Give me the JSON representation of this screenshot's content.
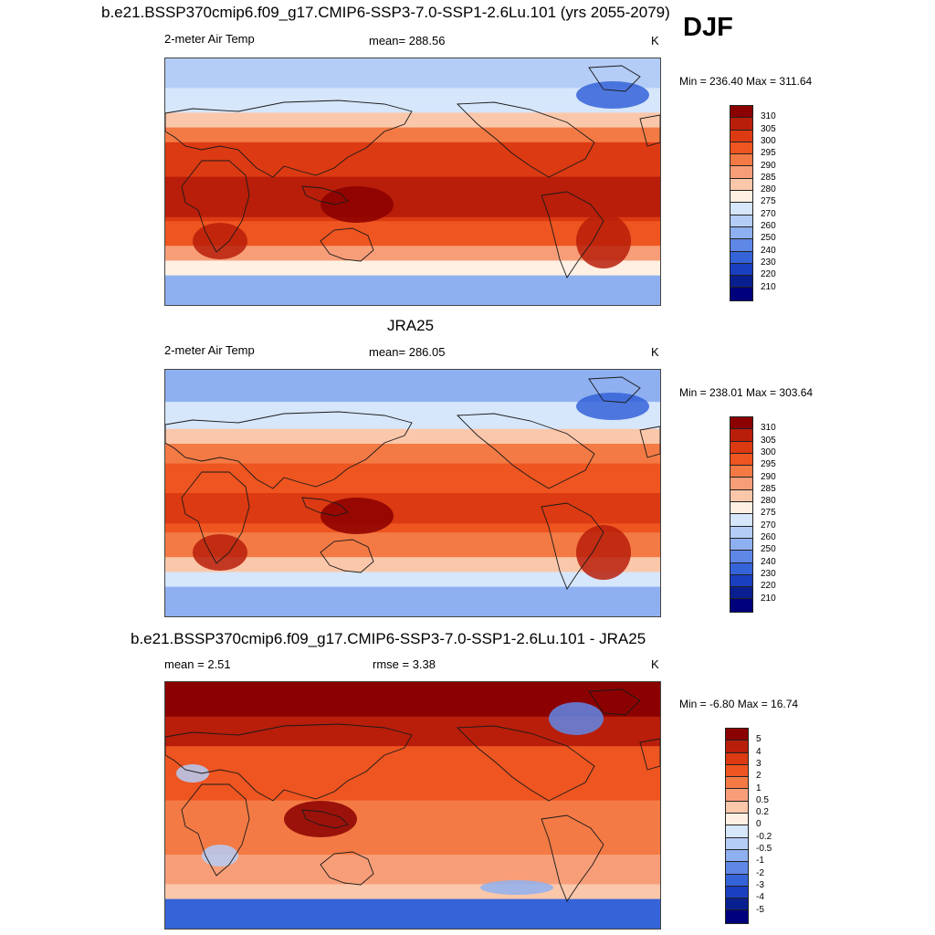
{
  "figure": {
    "title": "b.e21.BSSP370cmip6.f09_g17.CMIP6-SSP3-7.0-SSP1-2.6Lu.101 (yrs 2055-2079)",
    "season": "DJF"
  },
  "chart_data": [
    {
      "type": "heatmap",
      "title": "",
      "left_label": "2-meter Air Temp",
      "center_label": "mean= 288.56",
      "right_label": "K",
      "minmax": "Min = 236.40 Max = 311.64",
      "mean": 288.56,
      "min": 236.4,
      "max": 311.64,
      "units": "K",
      "colorbar_levels": [
        "310",
        "305",
        "300",
        "295",
        "290",
        "285",
        "280",
        "275",
        "270",
        "260",
        "250",
        "240",
        "230",
        "220",
        "210"
      ],
      "colors": [
        "#8b0000",
        "#b81e0a",
        "#dc3a12",
        "#ee5520",
        "#f37a45",
        "#f79e78",
        "#fbc7aa",
        "#fff0e3",
        "#d6e6fb",
        "#b4cdf7",
        "#8fb0f0",
        "#5f87e6",
        "#3563d8",
        "#1a3fc0",
        "#0a1f8f",
        "#00007d"
      ]
    },
    {
      "type": "heatmap",
      "title": "JRA25",
      "left_label": "2-meter Air Temp",
      "center_label": "mean= 286.05",
      "right_label": "K",
      "minmax": "Min = 238.01 Max = 303.64",
      "mean": 286.05,
      "min": 238.01,
      "max": 303.64,
      "units": "K",
      "colorbar_levels": [
        "310",
        "305",
        "300",
        "295",
        "290",
        "285",
        "280",
        "275",
        "270",
        "260",
        "250",
        "240",
        "230",
        "220",
        "210"
      ],
      "colors": [
        "#8b0000",
        "#b81e0a",
        "#dc3a12",
        "#ee5520",
        "#f37a45",
        "#f79e78",
        "#fbc7aa",
        "#fff0e3",
        "#d6e6fb",
        "#b4cdf7",
        "#8fb0f0",
        "#5f87e6",
        "#3563d8",
        "#1a3fc0",
        "#0a1f8f",
        "#00007d"
      ]
    },
    {
      "type": "heatmap",
      "title": "b.e21.BSSP370cmip6.f09_g17.CMIP6-SSP3-7.0-SSP1-2.6Lu.101 - JRA25",
      "left_label": "mean =   2.51",
      "center_label": "rmse =   3.38",
      "right_label": "K",
      "minmax": "Min =  -6.80 Max =  16.74",
      "mean": 2.51,
      "rmse": 3.38,
      "min": -6.8,
      "max": 16.74,
      "units": "K",
      "colorbar_levels": [
        "5",
        "4",
        "3",
        "2",
        "1",
        "0.5",
        "0.2",
        "0",
        "-0.2",
        "-0.5",
        "-1",
        "-2",
        "-3",
        "-4",
        "-5"
      ],
      "colors": [
        "#8b0000",
        "#b81e0a",
        "#dc3a12",
        "#ee5520",
        "#f37a45",
        "#f79e78",
        "#fbc7aa",
        "#fff0e3",
        "#d6e6fb",
        "#b4cdf7",
        "#8fb0f0",
        "#5f87e6",
        "#3563d8",
        "#1a3fc0",
        "#0a1f8f",
        "#00007d"
      ]
    }
  ]
}
